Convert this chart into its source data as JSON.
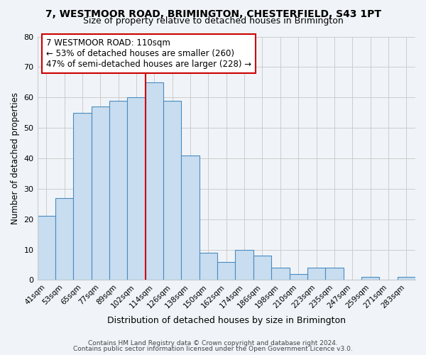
{
  "title": "7, WESTMOOR ROAD, BRIMINGTON, CHESTERFIELD, S43 1PT",
  "subtitle": "Size of property relative to detached houses in Brimington",
  "xlabel": "Distribution of detached houses by size in Brimington",
  "ylabel": "Number of detached properties",
  "bar_labels": [
    "41sqm",
    "53sqm",
    "65sqm",
    "77sqm",
    "89sqm",
    "102sqm",
    "114sqm",
    "126sqm",
    "138sqm",
    "150sqm",
    "162sqm",
    "174sqm",
    "186sqm",
    "198sqm",
    "210sqm",
    "223sqm",
    "235sqm",
    "247sqm",
    "259sqm",
    "271sqm",
    "283sqm"
  ],
  "bar_values": [
    21,
    27,
    55,
    57,
    59,
    60,
    65,
    59,
    41,
    9,
    6,
    10,
    8,
    4,
    2,
    4,
    4,
    0,
    1,
    0,
    1
  ],
  "bar_color": "#c8ddf0",
  "bar_edge_color": "#4a8bbf",
  "vline_x_index": 6,
  "vline_color": "#cc0000",
  "annotation_line1": "7 WESTMOOR ROAD: 110sqm",
  "annotation_line2": "← 53% of detached houses are smaller (260)",
  "annotation_line3": "47% of semi-detached houses are larger (228) →",
  "annotation_box_edge_color": "#cc0000",
  "annotation_box_face_color": "#ffffff",
  "ylim": [
    0,
    80
  ],
  "yticks": [
    0,
    10,
    20,
    30,
    40,
    50,
    60,
    70,
    80
  ],
  "grid_color": "#cccccc",
  "footer_line1": "Contains HM Land Registry data © Crown copyright and database right 2024.",
  "footer_line2": "Contains public sector information licensed under the Open Government Licence v3.0.",
  "bg_color": "#f0f4f8"
}
